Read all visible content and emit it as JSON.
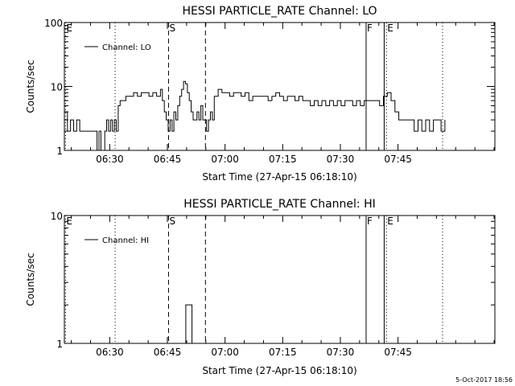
{
  "footer": {
    "timestamp": "5-Oct-2017 18:56"
  },
  "chart_data": [
    {
      "type": "line",
      "title": "HESSI PARTICLE_RATE Channel: LO",
      "xlabel": "Start Time (27-Apr-15 06:18:10)",
      "ylabel": "Counts/sec",
      "x_unit": "minutes after 06:18:10",
      "xlim": [
        0,
        112
      ],
      "ylim": [
        1,
        100
      ],
      "yscale": "log",
      "x_ticks": [
        {
          "x": 11.8,
          "label": "06:30"
        },
        {
          "x": 26.8,
          "label": "06:45"
        },
        {
          "x": 41.8,
          "label": "07:00"
        },
        {
          "x": 56.8,
          "label": "07:15"
        },
        {
          "x": 71.8,
          "label": "07:30"
        },
        {
          "x": 86.8,
          "label": "07:45"
        }
      ],
      "y_ticks": [
        {
          "y": 1,
          "label": "1"
        },
        {
          "y": 10,
          "label": "10"
        },
        {
          "y": 100,
          "label": "100"
        }
      ],
      "legend": {
        "entry": "Channel: LO",
        "placement": "top-left"
      },
      "markers": [
        {
          "x": 0.3,
          "label": "E",
          "style": "dotted"
        },
        {
          "x": 13.2,
          "label": "",
          "style": "dotted"
        },
        {
          "x": 27.1,
          "label": "S",
          "style": "dashed"
        },
        {
          "x": 36.7,
          "label": "",
          "style": "dashed"
        },
        {
          "x": 78.5,
          "label": "F",
          "style": "solid"
        },
        {
          "x": 83.2,
          "label": "",
          "style": "solid"
        },
        {
          "x": 83.8,
          "label": "E",
          "style": "dotted"
        },
        {
          "x": 98.4,
          "label": "",
          "style": "dotted"
        }
      ],
      "series": [
        {
          "x": [
            0,
            0.8,
            1.6,
            2.4,
            3.2,
            4,
            5,
            6,
            7,
            8,
            8.5,
            9,
            9.5,
            10,
            10.5,
            11,
            11.5,
            12,
            12.5,
            13,
            13.5,
            14,
            14.5,
            15,
            16,
            17,
            18,
            19,
            20,
            21,
            22,
            23,
            24,
            25,
            25.5,
            26,
            26.5,
            27,
            27.5,
            28,
            28.5,
            29,
            29.5,
            30,
            30.5,
            31,
            31.5,
            32,
            32.5,
            33,
            33.5,
            34,
            34.5,
            35,
            35.5,
            36,
            36.5,
            37,
            37.5,
            38,
            38.5,
            39,
            40,
            41,
            42,
            43,
            44,
            45,
            46,
            47,
            48,
            49,
            50,
            51,
            52,
            53,
            54,
            55,
            56,
            57,
            58,
            59,
            60,
            61,
            62,
            63,
            64,
            65,
            66,
            67,
            68,
            69,
            70,
            71,
            72,
            73,
            74,
            75,
            76,
            77,
            78,
            79,
            80,
            81,
            82,
            83,
            84,
            85,
            86,
            87,
            88,
            89,
            90,
            91,
            92,
            93,
            94,
            95,
            96,
            97,
            98,
            99
          ],
          "y": [
            4,
            2,
            3,
            2,
            3,
            2,
            2,
            2,
            2,
            2,
            1,
            2,
            1,
            1,
            2,
            3,
            2,
            3,
            2,
            3,
            2,
            5,
            6,
            6,
            7,
            7,
            8,
            7,
            8,
            8,
            7,
            8,
            7,
            9,
            6,
            4,
            3,
            2,
            3,
            2,
            4,
            3,
            5,
            7,
            9,
            12,
            11,
            8,
            6,
            4,
            3,
            3,
            4,
            3,
            5,
            3,
            3,
            2,
            3,
            4,
            3,
            7,
            9,
            8,
            8,
            7,
            8,
            8,
            7,
            8,
            6,
            7,
            7,
            7,
            7,
            6,
            7,
            8,
            7,
            6,
            7,
            7,
            6,
            7,
            6,
            6,
            5,
            6,
            5,
            6,
            5,
            6,
            5,
            6,
            5,
            6,
            6,
            5,
            6,
            5,
            6,
            6,
            6,
            6,
            5,
            7,
            8,
            6,
            4,
            3,
            3,
            3,
            3,
            2,
            3,
            2,
            3,
            2,
            3,
            3,
            2,
            3
          ]
        }
      ]
    },
    {
      "type": "line",
      "title": "HESSI PARTICLE_RATE Channel: HI",
      "xlabel": "Start Time (27-Apr-15 06:18:10)",
      "ylabel": "Counts/sec",
      "x_unit": "minutes after 06:18:10",
      "xlim": [
        0,
        112
      ],
      "ylim": [
        1,
        10
      ],
      "yscale": "log",
      "x_ticks": [
        {
          "x": 11.8,
          "label": "06:30"
        },
        {
          "x": 26.8,
          "label": "06:45"
        },
        {
          "x": 41.8,
          "label": "07:00"
        },
        {
          "x": 56.8,
          "label": "07:15"
        },
        {
          "x": 71.8,
          "label": "07:30"
        },
        {
          "x": 86.8,
          "label": "07:45"
        }
      ],
      "y_ticks": [
        {
          "y": 1,
          "label": "1"
        },
        {
          "y": 10,
          "label": "10"
        }
      ],
      "legend": {
        "entry": "Channel: HI",
        "placement": "top-left"
      },
      "markers": [
        {
          "x": 0.3,
          "label": "E",
          "style": "dotted"
        },
        {
          "x": 13.2,
          "label": "",
          "style": "dotted"
        },
        {
          "x": 27.1,
          "label": "S",
          "style": "dashed"
        },
        {
          "x": 36.7,
          "label": "",
          "style": "dashed"
        },
        {
          "x": 78.5,
          "label": "F",
          "style": "solid"
        },
        {
          "x": 83.2,
          "label": "",
          "style": "solid"
        },
        {
          "x": 83.8,
          "label": "E",
          "style": "dotted"
        },
        {
          "x": 98.4,
          "label": "",
          "style": "dotted"
        }
      ],
      "series": [
        {
          "x": [
            31.0,
            31.6,
            32.6,
            33.2
          ],
          "y": [
            1,
            2,
            2,
            1
          ]
        }
      ]
    }
  ]
}
